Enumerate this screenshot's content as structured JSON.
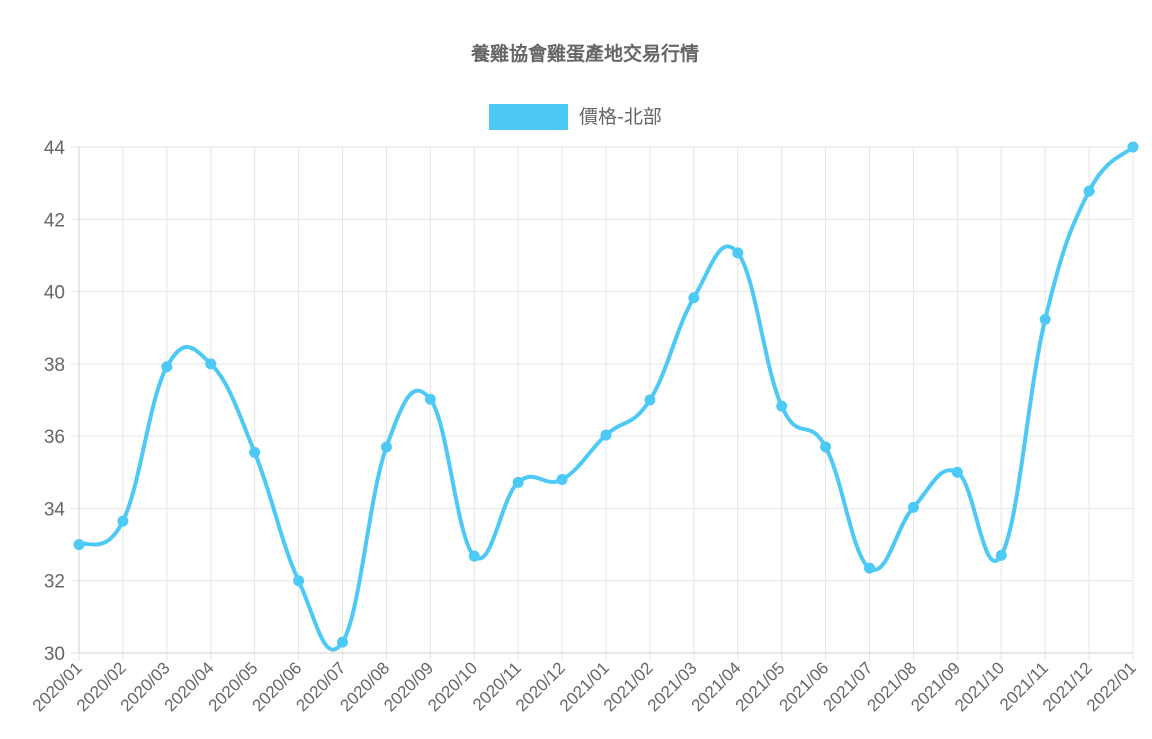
{
  "chart_data": {
    "type": "line",
    "title": "養雞協會雞蛋產地交易行情",
    "legend_position": "top",
    "grid": true,
    "categories": [
      "2020/01",
      "2020/02",
      "2020/03",
      "2020/04",
      "2020/05",
      "2020/06",
      "2020/07",
      "2020/08",
      "2020/09",
      "2020/10",
      "2020/11",
      "2020/12",
      "2021/01",
      "2021/02",
      "2021/03",
      "2021/04",
      "2021/05",
      "2021/06",
      "2021/07",
      "2021/08",
      "2021/09",
      "2021/10",
      "2021/11",
      "2021/12",
      "2022/01"
    ],
    "series": [
      {
        "name": "價格-北部",
        "color": "#4dc9f6",
        "values": [
          33.0,
          33.65,
          37.92,
          38.0,
          35.55,
          32.0,
          30.3,
          35.7,
          37.02,
          32.68,
          34.72,
          34.8,
          36.03,
          37.0,
          39.83,
          41.07,
          36.83,
          35.7,
          32.35,
          34.03,
          35.0,
          32.7,
          39.23,
          42.78,
          44.0
        ]
      }
    ],
    "ylim": [
      30,
      44
    ],
    "yticks": [
      30,
      32,
      34,
      36,
      38,
      40,
      42,
      44
    ],
    "xlabel": "",
    "ylabel": ""
  }
}
